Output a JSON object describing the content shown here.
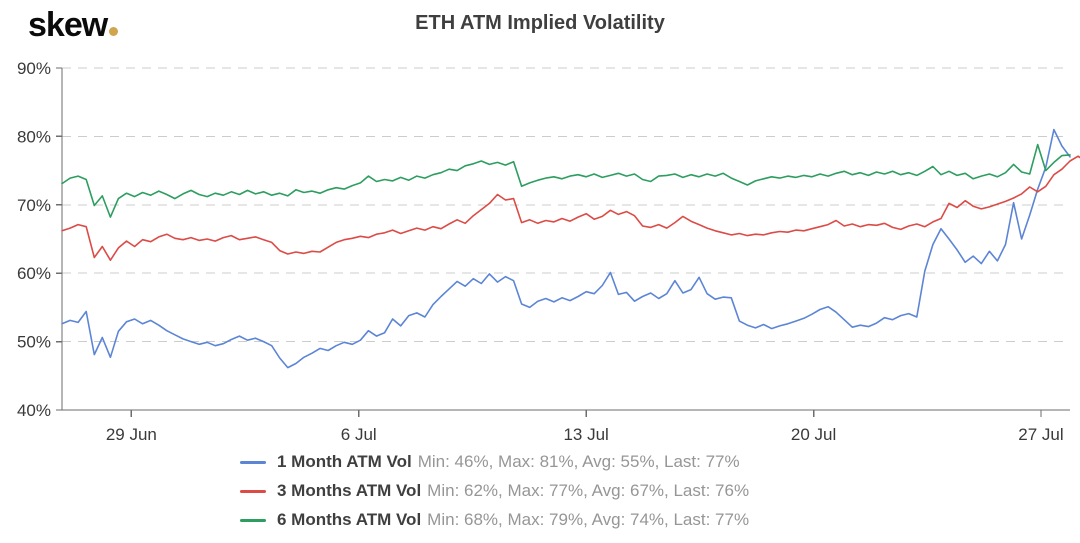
{
  "brand": {
    "logo_text": "skew",
    "logo_dot_color": "#d0a54e"
  },
  "header": {
    "title": "ETH ATM Implied Volatility"
  },
  "legend": [
    {
      "name": "1 Month ATM Vol",
      "stats": "Min: 46%, Max: 81%, Avg: 55%, Last: 77%",
      "color": "#5c85d6"
    },
    {
      "name": "3 Months ATM Vol",
      "stats": "Min: 62%, Max: 77%, Avg: 67%, Last: 76%",
      "color": "#dc4b46"
    },
    {
      "name": "6 Months ATM Vol",
      "stats": "Min: 68%, Max: 79%, Avg: 74%, Last: 77%",
      "color": "#2d9e5f"
    }
  ],
  "chart_data": {
    "type": "line",
    "title": "ETH ATM Implied Volatility",
    "xlabel": "",
    "ylabel": "",
    "ylim": [
      40,
      90
    ],
    "y_ticks": [
      {
        "value": 40,
        "label": "40%"
      },
      {
        "value": 50,
        "label": "50%"
      },
      {
        "value": 60,
        "label": "60%"
      },
      {
        "value": 70,
        "label": "70%"
      },
      {
        "value": 80,
        "label": "80%"
      },
      {
        "value": 90,
        "label": "90%"
      }
    ],
    "x_range": [
      0,
      31.25
    ],
    "x_unit": "days",
    "x_ticks": [
      {
        "pos": 2.15,
        "label": "29 Jun"
      },
      {
        "pos": 9.2,
        "label": "6 Jul"
      },
      {
        "pos": 16.25,
        "label": "13 Jul"
      },
      {
        "pos": 23.3,
        "label": "20 Jul"
      },
      {
        "pos": 30.35,
        "label": "27 Jul"
      }
    ],
    "grid": "horizontal-dashed",
    "legend_position": "bottom",
    "x_start": 0,
    "x_step": 0.25,
    "series": [
      {
        "name": "1 Month ATM Vol",
        "color": "#5c85d6",
        "min": 46,
        "max": 81,
        "avg": 55,
        "last": 77,
        "values": [
          52.6,
          53.1,
          52.8,
          54.4,
          48.1,
          50.6,
          47.7,
          51.5,
          52.9,
          53.3,
          52.6,
          53.1,
          52.4,
          51.6,
          51.0,
          50.4,
          50.0,
          49.6,
          49.9,
          49.4,
          49.7,
          50.3,
          50.8,
          50.2,
          50.5,
          50.0,
          49.4,
          47.6,
          46.2,
          46.8,
          47.7,
          48.3,
          49.0,
          48.7,
          49.4,
          49.9,
          49.6,
          50.2,
          51.6,
          50.8,
          51.3,
          53.3,
          52.3,
          53.8,
          54.2,
          53.6,
          55.4,
          56.6,
          57.7,
          58.8,
          58.1,
          59.2,
          58.5,
          59.9,
          58.7,
          59.5,
          58.9,
          55.5,
          55.0,
          55.9,
          56.3,
          55.8,
          56.4,
          56.0,
          56.6,
          57.3,
          57.0,
          58.2,
          60.1,
          56.9,
          57.2,
          55.9,
          56.6,
          57.1,
          56.3,
          57.0,
          58.9,
          57.1,
          57.6,
          59.4,
          57.0,
          56.2,
          56.5,
          56.4,
          53.0,
          52.4,
          52.0,
          52.5,
          51.9,
          52.3,
          52.6,
          53.0,
          53.4,
          54.0,
          54.7,
          55.1,
          54.3,
          53.2,
          52.1,
          52.4,
          52.2,
          52.7,
          53.5,
          53.2,
          53.8,
          54.1,
          53.6,
          60.3,
          64.2,
          66.5,
          65.0,
          63.4,
          61.6,
          62.5,
          61.4,
          63.2,
          61.8,
          64.2,
          70.3,
          65.0,
          68.5,
          72.3,
          75.5,
          81.0,
          78.6,
          77.0
        ]
      },
      {
        "name": "3 Months ATM Vol",
        "color": "#dc4b46",
        "min": 62,
        "max": 77,
        "avg": 67,
        "last": 76,
        "values": [
          66.2,
          66.6,
          67.1,
          66.8,
          62.3,
          63.9,
          61.9,
          63.7,
          64.7,
          63.9,
          64.9,
          64.6,
          65.3,
          65.7,
          65.1,
          64.9,
          65.2,
          64.8,
          65.0,
          64.7,
          65.2,
          65.5,
          64.9,
          65.1,
          65.3,
          64.9,
          64.5,
          63.3,
          62.8,
          63.1,
          62.9,
          63.2,
          63.1,
          63.8,
          64.5,
          64.9,
          65.1,
          65.4,
          65.2,
          65.7,
          65.9,
          66.3,
          65.8,
          66.2,
          66.6,
          66.3,
          66.8,
          66.5,
          67.2,
          67.8,
          67.3,
          68.4,
          69.3,
          70.2,
          71.5,
          70.7,
          70.9,
          67.4,
          67.8,
          67.3,
          67.7,
          67.5,
          68.0,
          67.6,
          68.2,
          68.7,
          67.9,
          68.3,
          69.2,
          68.6,
          69.0,
          68.4,
          66.9,
          66.7,
          67.1,
          66.6,
          67.4,
          68.3,
          67.6,
          67.1,
          66.6,
          66.2,
          65.9,
          65.6,
          65.8,
          65.5,
          65.7,
          65.6,
          65.9,
          66.1,
          66.0,
          66.3,
          66.2,
          66.5,
          66.8,
          67.1,
          67.7,
          66.9,
          67.2,
          66.8,
          67.1,
          67.0,
          67.3,
          66.7,
          66.4,
          66.9,
          67.2,
          66.8,
          67.5,
          68.0,
          70.2,
          69.6,
          70.6,
          69.8,
          69.4,
          69.7,
          70.1,
          70.5,
          71.0,
          71.6,
          72.6,
          71.9,
          72.7,
          74.4,
          75.2,
          76.4,
          77.1,
          76.3
        ]
      },
      {
        "name": "6 Months ATM Vol",
        "color": "#2d9e5f",
        "min": 68,
        "max": 79,
        "avg": 74,
        "last": 77,
        "values": [
          73.1,
          73.9,
          74.2,
          73.7,
          69.9,
          71.3,
          68.2,
          70.9,
          71.7,
          71.2,
          71.8,
          71.4,
          72.0,
          71.5,
          70.9,
          71.6,
          72.1,
          71.5,
          71.2,
          71.7,
          71.4,
          71.9,
          71.5,
          72.1,
          71.6,
          71.9,
          71.4,
          71.7,
          71.3,
          72.2,
          71.8,
          72.0,
          71.7,
          72.2,
          72.5,
          72.3,
          72.8,
          73.2,
          74.2,
          73.4,
          73.7,
          73.5,
          74.0,
          73.6,
          74.2,
          73.9,
          74.4,
          74.7,
          75.2,
          75.0,
          75.7,
          76.0,
          76.4,
          75.9,
          76.2,
          75.8,
          76.3,
          72.7,
          73.2,
          73.6,
          73.9,
          74.1,
          73.8,
          74.2,
          74.4,
          74.1,
          74.5,
          74.0,
          74.3,
          74.6,
          74.2,
          74.5,
          73.7,
          73.4,
          74.2,
          74.3,
          74.5,
          74.0,
          74.4,
          74.1,
          74.5,
          74.2,
          74.6,
          73.9,
          73.4,
          72.9,
          73.5,
          73.8,
          74.1,
          73.9,
          74.2,
          74.0,
          74.3,
          74.1,
          74.5,
          74.2,
          74.6,
          74.9,
          74.4,
          74.7,
          74.3,
          74.8,
          74.5,
          74.9,
          74.4,
          74.7,
          74.3,
          74.9,
          75.6,
          74.4,
          74.9,
          74.3,
          74.6,
          73.8,
          74.2,
          74.5,
          74.1,
          74.7,
          75.9,
          74.8,
          74.5,
          78.8,
          75.0,
          76.2,
          77.2,
          77.3
        ]
      }
    ]
  }
}
